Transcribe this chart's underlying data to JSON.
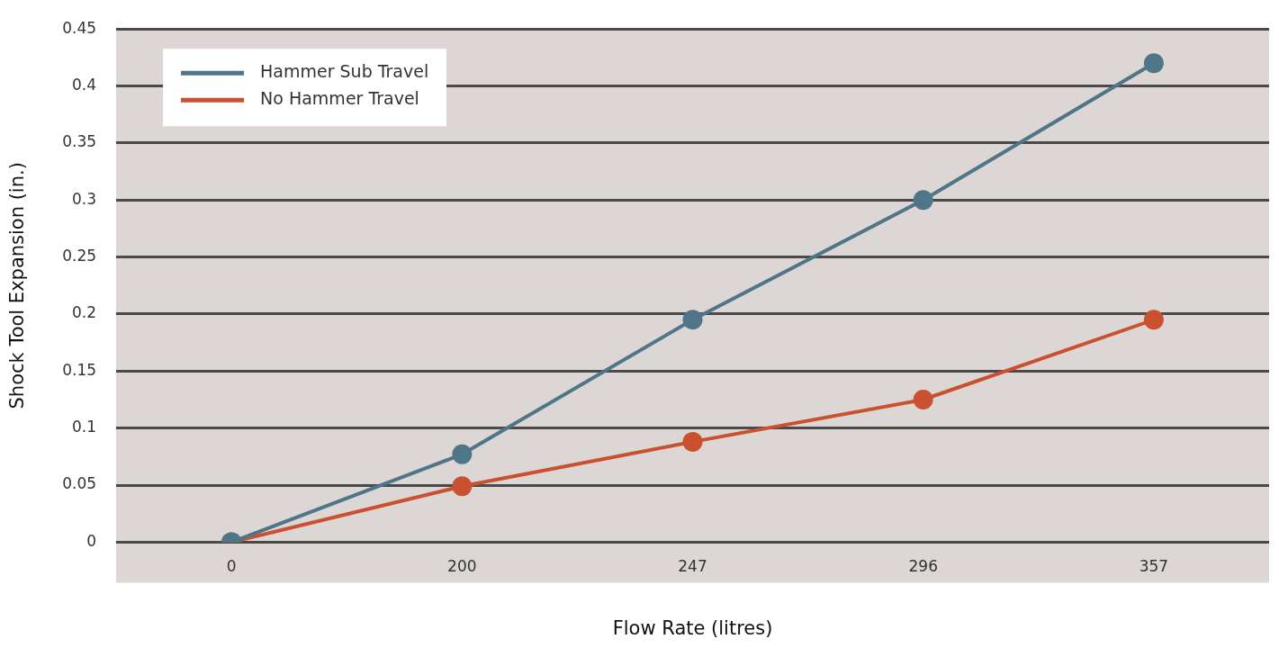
{
  "chart_data": {
    "type": "line",
    "xlabel": "Flow Rate (litres)",
    "ylabel": "Shock Tool Expansion (in.)",
    "categories": [
      "0",
      "200",
      "247",
      "296",
      "357"
    ],
    "series": [
      {
        "name": "Hammer Sub Travel",
        "color": "#4f7589",
        "values": [
          0,
          0.077,
          0.195,
          0.3,
          0.42
        ]
      },
      {
        "name": "No Hammer Travel",
        "color": "#c9512f",
        "values": [
          0,
          0.049,
          0.088,
          0.125,
          0.195
        ]
      }
    ],
    "ylim": [
      0,
      0.45
    ],
    "yticks": [
      0,
      0.05,
      0.1,
      0.15,
      0.2,
      0.25,
      0.3,
      0.35,
      0.4,
      0.45
    ],
    "grid": "y",
    "legend": "top left",
    "marker": "circle",
    "line_style": "solid"
  }
}
